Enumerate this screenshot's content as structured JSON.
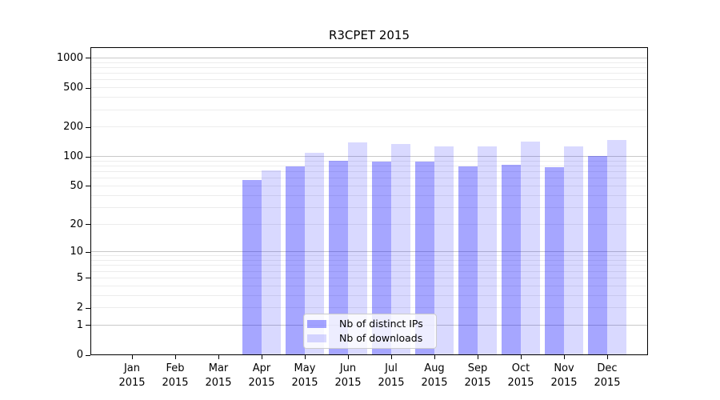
{
  "chart_data": {
    "type": "bar",
    "title": "R3CPET 2015",
    "xlabel": "",
    "ylabel": "",
    "categories": [
      "Jan 2015",
      "Feb 2015",
      "Mar 2015",
      "Apr 2015",
      "May 2015",
      "Jun 2015",
      "Jul 2015",
      "Aug 2015",
      "Sep 2015",
      "Oct 2015",
      "Nov 2015",
      "Dec 2015"
    ],
    "series": [
      {
        "name": "Nb of distinct IPs",
        "color": "#0000ff59",
        "solid_color": "#a6a6ff",
        "values": [
          0,
          0,
          0,
          57,
          78,
          90,
          88,
          88,
          78,
          81,
          77,
          100
        ]
      },
      {
        "name": "Nb of downloads",
        "color": "#0000ff26",
        "solid_color": "#d9d9ff",
        "values": [
          0,
          0,
          0,
          72,
          108,
          138,
          134,
          126,
          125,
          140,
          126,
          146
        ]
      }
    ],
    "yscale": "log1p",
    "yticks": [
      0,
      1,
      2,
      5,
      10,
      20,
      50,
      100,
      200,
      500,
      1000
    ],
    "ylim": [
      0,
      1300
    ],
    "grid": "horizontal",
    "legend_position": "lower center"
  },
  "colors": {
    "background": "#ffffff",
    "axis": "#000000",
    "grid_major": "#c9c9c9",
    "grid_minor": "#ececec",
    "text": "#000000",
    "legend_border": "#cccccc"
  }
}
